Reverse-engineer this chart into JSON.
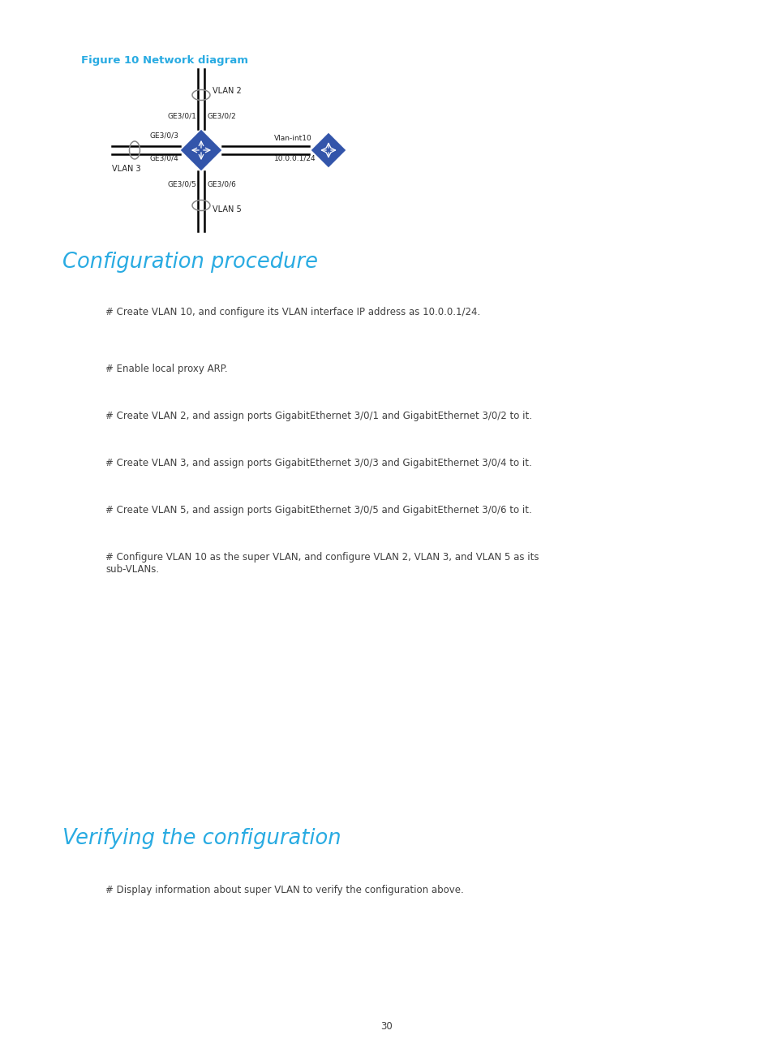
{
  "bg_color": "#ffffff",
  "figure_label": "Figure 10 Network diagram",
  "figure_label_color": "#29abe2",
  "section1_title": "Configuration procedure",
  "section1_color": "#29abe2",
  "section2_title": "Verifying the configuration",
  "section2_color": "#29abe2",
  "body_text_color": "#404040",
  "body_font_size": 8.5,
  "paragraphs": [
    "# Create VLAN 10, and configure its VLAN interface IP address as 10.0.0.1/24.",
    "# Enable local proxy ARP.",
    "# Create VLAN 2, and assign ports GigabitEthernet 3/0/1 and GigabitEthernet 3/0/2 to it.",
    "# Create VLAN 3, and assign ports GigabitEthernet 3/0/3 and GigabitEthernet 3/0/4 to it.",
    "# Create VLAN 5, and assign ports GigabitEthernet 3/0/5 and GigabitEthernet 3/0/6 to it.",
    "# Configure VLAN 10 as the super VLAN, and configure VLAN 2, VLAN 3, and VLAN 5 as its\nsub-VLANs."
  ],
  "verify_paragraph": "# Display information about super VLAN to verify the configuration above.",
  "page_number": "30",
  "switch_color": "#3355aa",
  "line_color": "#000000",
  "ellipse_color": "#888888",
  "diagram_labels": {
    "vlan2": "VLAN 2",
    "vlan3": "VLAN 3",
    "vlan5": "VLAN 5",
    "ge301": "GE3/0/1",
    "ge302": "GE3/0/2",
    "ge303": "GE3/0/3",
    "ge304": "GE3/0/4",
    "ge305": "GE3/0/5",
    "ge306": "GE3/0/6",
    "vlan_int": "Vlan-int10",
    "ip": "10.0.0.1/24"
  }
}
